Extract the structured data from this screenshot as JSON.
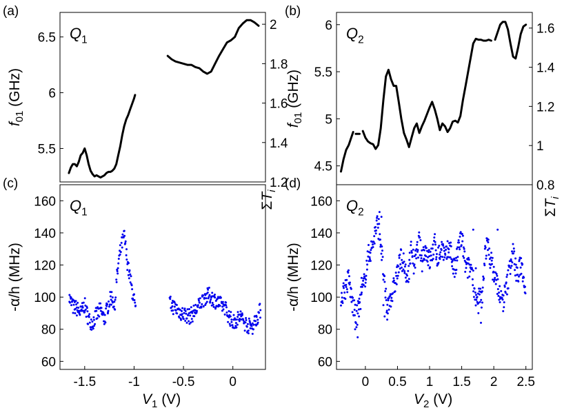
{
  "figure": {
    "description_labels": [
      "(a)",
      "(b)",
      "(c)",
      "(d)"
    ]
  },
  "chart_data": [
    {
      "id": "a",
      "type": "line",
      "panel_label": "(a)",
      "annotation": "Q",
      "annotation_sub": "1",
      "ylabel": "f",
      "ylabel_sub": "01",
      "ylabel_unit": "(GHz)",
      "y2label": "ΣT",
      "y2label_sub": "i",
      "xlim": [
        -1.75,
        0.33
      ],
      "ylim": [
        5.2,
        6.72
      ],
      "y2lim": [
        1.2,
        2.06
      ],
      "yticks": [
        5.5,
        6,
        6.5
      ],
      "y2ticks": [
        1.2,
        1.4,
        1.6,
        1.8,
        2
      ],
      "color": "#000000",
      "series": [
        {
          "name": "segment 1",
          "x": [
            -1.66,
            -1.64,
            -1.62,
            -1.6,
            -1.58,
            -1.56,
            -1.54,
            -1.52,
            -1.5,
            -1.48,
            -1.46,
            -1.44,
            -1.42,
            -1.4,
            -1.38,
            -1.36,
            -1.34,
            -1.32,
            -1.3,
            -1.28,
            -1.26,
            -1.24,
            -1.22,
            -1.2,
            -1.18,
            -1.16,
            -1.14,
            -1.12,
            -1.1,
            -1.08,
            -1.06,
            -1.04,
            -1.02,
            -1.0,
            -0.99
          ],
          "y": [
            5.28,
            5.33,
            5.36,
            5.36,
            5.34,
            5.38,
            5.44,
            5.46,
            5.5,
            5.44,
            5.36,
            5.3,
            5.27,
            5.25,
            5.26,
            5.25,
            5.24,
            5.25,
            5.26,
            5.28,
            5.29,
            5.29,
            5.3,
            5.32,
            5.36,
            5.44,
            5.52,
            5.62,
            5.7,
            5.76,
            5.8,
            5.85,
            5.9,
            5.95,
            5.98
          ]
        },
        {
          "name": "segment 2",
          "x": [
            -0.66,
            -0.62,
            -0.58,
            -0.54,
            -0.5,
            -0.46,
            -0.42,
            -0.38,
            -0.34,
            -0.3,
            -0.26,
            -0.22,
            -0.18,
            -0.14,
            -0.1,
            -0.06,
            -0.02,
            0.02,
            0.06,
            0.1,
            0.14,
            0.18,
            0.22,
            0.26
          ],
          "y": [
            6.33,
            6.3,
            6.28,
            6.27,
            6.26,
            6.25,
            6.25,
            6.23,
            6.22,
            6.19,
            6.17,
            6.19,
            6.26,
            6.33,
            6.39,
            6.45,
            6.47,
            6.5,
            6.58,
            6.62,
            6.65,
            6.65,
            6.63,
            6.6
          ]
        }
      ]
    },
    {
      "id": "b",
      "type": "line",
      "panel_label": "(b)",
      "annotation": "Q",
      "annotation_sub": "2",
      "ylabel": "f",
      "ylabel_sub": "01",
      "ylabel_unit": "(GHz)",
      "y2label": "ΣT",
      "y2label_sub": "i",
      "xlim": [
        -0.45,
        2.6
      ],
      "ylim": [
        4.3,
        6.13
      ],
      "y2lim": [
        0.8,
        1.68
      ],
      "yticks": [
        4.5,
        5,
        5.5,
        6
      ],
      "y2ticks": [
        0.8,
        1,
        1.2,
        1.4,
        1.6
      ],
      "color": "#000000",
      "series": [
        {
          "name": "segment 1",
          "x": [
            -0.38,
            -0.34,
            -0.3,
            -0.26,
            -0.22,
            -0.19
          ],
          "y": [
            4.44,
            4.57,
            4.67,
            4.72,
            4.8,
            4.86
          ]
        },
        {
          "name": "segment 2",
          "x": [
            -0.15,
            -0.09
          ],
          "y": [
            4.84,
            4.84
          ]
        },
        {
          "name": "segment 3",
          "x": [
            -0.04,
            0.0,
            0.04,
            0.08,
            0.12,
            0.16,
            0.2,
            0.24,
            0.28,
            0.32,
            0.36,
            0.4,
            0.44,
            0.48,
            0.52,
            0.56,
            0.6,
            0.64,
            0.68,
            0.72,
            0.76,
            0.8,
            0.84,
            0.88,
            0.92,
            0.96,
            1.0,
            1.04,
            1.08,
            1.12,
            1.16,
            1.2,
            1.24,
            1.28,
            1.32,
            1.36,
            1.4,
            1.44,
            1.48,
            1.52,
            1.56,
            1.6,
            1.64,
            1.68,
            1.72,
            1.76,
            1.8,
            1.84,
            1.88,
            1.92,
            1.96
          ],
          "y": [
            4.87,
            4.8,
            4.76,
            4.74,
            4.73,
            4.68,
            4.72,
            4.9,
            5.2,
            5.45,
            5.52,
            5.42,
            5.35,
            5.35,
            5.18,
            5.0,
            4.85,
            4.78,
            4.7,
            4.8,
            4.9,
            4.95,
            4.85,
            4.92,
            4.98,
            5.05,
            5.12,
            5.18,
            5.1,
            5.0,
            4.88,
            4.95,
            4.92,
            4.86,
            4.9,
            4.97,
            4.98,
            4.96,
            5.03,
            5.2,
            5.35,
            5.5,
            5.65,
            5.8,
            5.85,
            5.84,
            5.84,
            5.83,
            5.83,
            5.84,
            5.83
          ]
        },
        {
          "name": "segment 4",
          "x": [
            2.02,
            2.06,
            2.1,
            2.14,
            2.18,
            2.22,
            2.26,
            2.3,
            2.34,
            2.38,
            2.42,
            2.46,
            2.5
          ],
          "y": [
            5.84,
            5.92,
            6.0,
            6.03,
            6.03,
            5.95,
            5.8,
            5.66,
            5.64,
            5.76,
            5.9,
            5.98,
            6.0
          ]
        }
      ]
    },
    {
      "id": "c",
      "type": "scatter",
      "panel_label": "(c)",
      "annotation": "Q",
      "annotation_sub": "1",
      "ylabel": "-α/h (MHz)",
      "xlabel": "V",
      "xlabel_sub": "1",
      "xlabel_unit": "(V)",
      "xlim": [
        -1.75,
        0.33
      ],
      "ylim": [
        55,
        170
      ],
      "xticks": [
        -1.5,
        -1,
        -0.5,
        0
      ],
      "xticklabels": [
        "-1.5",
        "-1",
        "-0.5",
        "0"
      ],
      "yticks": [
        60,
        80,
        100,
        120,
        140,
        160
      ],
      "color": "#0000ee",
      "trend": {
        "x": [
          -1.66,
          -1.62,
          -1.58,
          -1.54,
          -1.5,
          -1.46,
          -1.42,
          -1.38,
          -1.34,
          -1.3,
          -1.26,
          -1.22,
          -1.2,
          -1.18,
          -1.16,
          -1.14,
          -1.12,
          -1.1,
          -1.08,
          -1.06,
          -1.04,
          -1.02,
          -1.0,
          -0.98,
          -0.64,
          -0.6,
          -0.56,
          -0.52,
          -0.48,
          -0.44,
          -0.4,
          -0.36,
          -0.32,
          -0.28,
          -0.24,
          -0.2,
          -0.16,
          -0.12,
          -0.08,
          -0.04,
          0.0,
          0.04,
          0.08,
          0.12,
          0.16,
          0.2,
          0.24,
          0.28
        ],
        "y": [
          100,
          94,
          93,
          90,
          95,
          86,
          84,
          89,
          92,
          86,
          96,
          101,
          92,
          108,
          120,
          128,
          134,
          138,
          128,
          118,
          112,
          104,
          98,
          88,
          96,
          94,
          92,
          90,
          89,
          88,
          90,
          93,
          97,
          100,
          101,
          99,
          97,
          95,
          94,
          88,
          84,
          86,
          88,
          84,
          82,
          82,
          87,
          92
        ]
      },
      "spread": 5
    },
    {
      "id": "d",
      "type": "scatter",
      "panel_label": "(d)",
      "annotation": "Q",
      "annotation_sub": "2",
      "ylabel": "-α/h (MHz)",
      "xlabel": "V",
      "xlabel_sub": "2",
      "xlabel_unit": "(V)",
      "xlim": [
        -0.45,
        2.6
      ],
      "ylim": [
        55,
        170
      ],
      "xticks": [
        0,
        0.5,
        1,
        1.5,
        2,
        2.5
      ],
      "xticklabels": [
        "0",
        "0.5",
        "1",
        "1.5",
        "2",
        "2.5"
      ],
      "yticks": [
        60,
        80,
        100,
        120,
        140,
        160
      ],
      "color": "#0000ee",
      "trend": {
        "x": [
          -0.38,
          -0.34,
          -0.3,
          -0.26,
          -0.22,
          -0.18,
          -0.14,
          -0.1,
          -0.06,
          -0.02,
          0.02,
          0.06,
          0.1,
          0.14,
          0.18,
          0.22,
          0.26,
          0.3,
          0.34,
          0.38,
          0.42,
          0.56,
          0.6,
          0.64,
          0.68,
          0.72,
          0.76,
          0.8,
          0.84,
          0.88,
          0.92,
          0.96,
          1.0,
          1.04,
          1.08,
          1.12,
          1.16,
          1.2,
          1.24,
          1.28,
          1.32,
          1.36,
          1.4,
          1.44,
          1.48,
          1.52,
          1.56,
          1.66,
          1.7,
          1.74,
          1.78,
          1.82,
          1.86,
          1.9,
          1.94,
          1.98,
          2.02,
          2.06,
          2.1,
          2.14,
          2.18,
          2.22,
          2.26,
          2.3,
          2.34,
          2.38,
          2.42,
          2.46,
          2.5
        ],
        "y": [
          100,
          104,
          106,
          112,
          100,
          92,
          86,
          95,
          102,
          108,
          120,
          128,
          130,
          138,
          145,
          142,
          125,
          105,
          92,
          100,
          102,
          125,
          120,
          110,
          118,
          132,
          118,
          127,
          135,
          122,
          130,
          128,
          122,
          127,
          133,
          125,
          127,
          132,
          123,
          128,
          132,
          120,
          116,
          128,
          137,
          132,
          118,
          118,
          104,
          95,
          100,
          98,
          128,
          132,
          126,
          118,
          112,
          108,
          99,
          97,
          103,
          110,
          122,
          128,
          118,
          112,
          122,
          114,
          106
        ]
      },
      "spread": 7,
      "outliers": {
        "x": [
          -0.16,
          -0.12,
          -0.1,
          -0.06,
          0.22,
          0.25,
          0.28,
          0.3,
          0.34,
          1.68,
          1.72,
          1.76,
          1.8,
          2.06,
          2.1
        ],
        "y": [
          80,
          75,
          88,
          112,
          153,
          150,
          95,
          88,
          86,
          142,
          118,
          90,
          84,
          142,
          100
        ]
      }
    }
  ]
}
